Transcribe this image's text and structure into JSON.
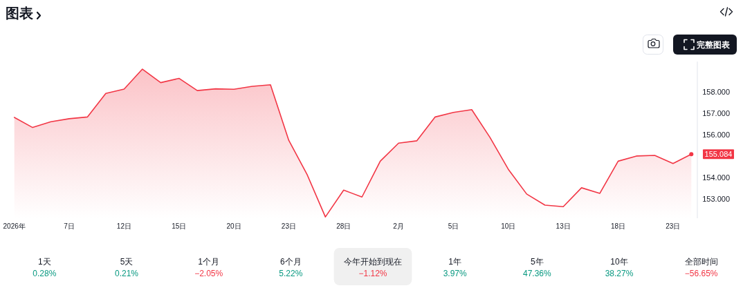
{
  "chart_data": [
    {
      "type": "area",
      "title": "图表",
      "categories": [
        "2026年",
        null,
        null,
        "7日",
        null,
        null,
        "12日",
        null,
        null,
        "15日",
        null,
        null,
        "20日",
        null,
        null,
        "23日",
        null,
        null,
        "28日",
        null,
        null,
        "2月",
        null,
        null,
        "5日",
        null,
        null,
        "10日",
        null,
        null,
        "13日",
        null,
        null,
        "18日",
        null,
        null,
        "23日",
        null
      ],
      "series": [
        {
          "color": "#f23645",
          "values": [
            156.8,
            156.33,
            156.6,
            156.74,
            156.82,
            157.92,
            158.12,
            159.05,
            158.42,
            158.62,
            158.05,
            158.13,
            158.11,
            158.25,
            158.32,
            155.73,
            154.14,
            152.16,
            153.41,
            153.09,
            154.76,
            155.6,
            155.71,
            156.82,
            157.03,
            157.16,
            155.86,
            154.38,
            153.23,
            152.71,
            152.64,
            153.52,
            153.26,
            154.76,
            155.0,
            155.03,
            154.65,
            155.084
          ],
          "value_labels": [
            null,
            null,
            null,
            null,
            null,
            null,
            null,
            null,
            null,
            null,
            null,
            null,
            null,
            null,
            null,
            null,
            null,
            null,
            null,
            null,
            null,
            null,
            null,
            null,
            null,
            null,
            null,
            null,
            null,
            null,
            null,
            null,
            null,
            null,
            null,
            null,
            null,
            "155.084"
          ]
        }
      ],
      "ylim": [
        152.1,
        159.4
      ],
      "yticks": [
        {
          "value": 153,
          "label": "153.000"
        },
        {
          "value": 154,
          "label": "154.000"
        },
        {
          "value": 156,
          "label": "156.000"
        },
        {
          "value": 157,
          "label": "157.000"
        },
        {
          "value": 158,
          "label": "158.000"
        }
      ],
      "annotations": [
        "完整图表"
      ]
    },
    {
      "type": "other",
      "categories": [
        "1天",
        "5天",
        "1个月",
        "6个月",
        "今年开始到现在",
        "1年",
        "5年",
        "10年",
        "全部时间"
      ],
      "value_labels": [
        "0.28%",
        "0.21%",
        "−2.05%",
        "5.22%",
        "−1.12%",
        "3.97%",
        "47.36%",
        "38.27%",
        "−56.65%"
      ],
      "colors": [
        "#089981",
        "#089981",
        "#f23645",
        "#089981",
        "#f23645",
        "#089981",
        "#089981",
        "#089981",
        "#f23645"
      ]
    }
  ]
}
